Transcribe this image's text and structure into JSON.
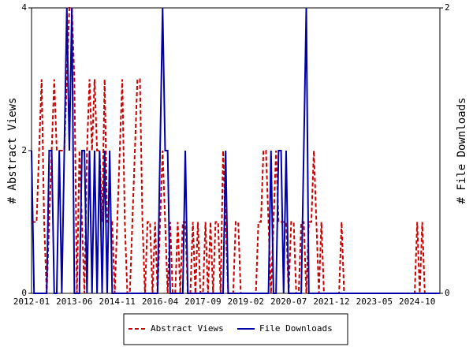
{
  "chart_data": {
    "type": "line",
    "y_label": "# Abstract Views",
    "y2_label": "# File Downloads",
    "categories": [
      "2012-01",
      null,
      null,
      null,
      null,
      null,
      null,
      null,
      null,
      null,
      null,
      null,
      null,
      null,
      null,
      null,
      null,
      "2013-06",
      null,
      null,
      null,
      null,
      null,
      null,
      null,
      null,
      null,
      null,
      null,
      null,
      null,
      null,
      null,
      null,
      "2014-11",
      null,
      null,
      null,
      null,
      null,
      null,
      null,
      null,
      null,
      null,
      null,
      null,
      null,
      null,
      null,
      null,
      "2016-04",
      null,
      null,
      null,
      null,
      null,
      null,
      null,
      null,
      null,
      null,
      null,
      null,
      null,
      null,
      null,
      null,
      "2017-09",
      null,
      null,
      null,
      null,
      null,
      null,
      null,
      null,
      null,
      null,
      null,
      null,
      null,
      null,
      null,
      null,
      "2019-02",
      null,
      null,
      null,
      null,
      null,
      null,
      null,
      null,
      null,
      null,
      null,
      null,
      null,
      null,
      null,
      null,
      "2020-07",
      null,
      null,
      null,
      null,
      null,
      null,
      null,
      null,
      null,
      null,
      null,
      null,
      null,
      null,
      null,
      null,
      "2021-12",
      null,
      null,
      null,
      null,
      null,
      null,
      null,
      null,
      null,
      null,
      null,
      null,
      null,
      null,
      null,
      null,
      "2023-05",
      null,
      null,
      null,
      null,
      null,
      null,
      null,
      null,
      null,
      null,
      null,
      null,
      null,
      null,
      null,
      null,
      "2024-10",
      null,
      null,
      null,
      null,
      null,
      null,
      null,
      null,
      null
    ],
    "series": [
      {
        "name": "Abstract Views",
        "color": "#cc0000",
        "dash": true,
        "values": [
          1,
          1,
          1,
          2,
          3,
          1,
          0,
          1,
          2,
          3,
          2,
          2,
          2,
          2,
          3,
          4,
          4,
          3,
          0,
          2,
          1,
          0,
          2,
          3,
          2,
          3,
          2,
          2,
          1,
          3,
          1,
          1,
          1,
          0,
          1,
          2,
          3,
          1,
          0,
          0,
          1,
          2,
          3,
          3,
          1,
          0,
          1,
          1,
          0,
          1,
          0,
          1,
          2,
          1,
          0,
          1,
          0,
          0,
          1,
          0,
          1,
          1,
          0,
          0,
          1,
          0,
          1,
          0,
          0,
          1,
          0,
          1,
          0,
          1,
          1,
          0,
          2,
          1,
          0,
          0,
          0,
          1,
          1,
          0,
          0,
          0,
          0,
          0,
          0,
          0,
          1,
          1,
          2,
          2,
          1,
          0,
          1,
          2,
          1,
          1,
          1,
          1,
          0,
          1,
          1,
          0,
          0,
          1,
          1,
          0,
          1,
          1,
          2,
          1,
          0,
          1,
          0,
          0,
          0,
          0,
          0,
          0,
          0,
          1,
          0,
          0,
          0,
          0,
          0,
          0,
          0,
          0,
          0,
          0,
          0,
          0,
          0,
          0,
          0,
          0,
          0,
          0,
          0,
          0,
          0,
          0,
          0,
          0,
          0,
          0,
          0,
          0,
          0,
          1,
          0,
          1,
          0,
          0,
          0,
          0,
          0,
          0,
          0
        ]
      },
      {
        "name": "File Downloads",
        "color": "#0000aa",
        "dash": false,
        "axis": "y2",
        "values": [
          1,
          0,
          0,
          0,
          0,
          0,
          0,
          1,
          1,
          0,
          0,
          1,
          0,
          1,
          2,
          1,
          2,
          0,
          0,
          0,
          1,
          1,
          0,
          1,
          0,
          1,
          0,
          1,
          0,
          1,
          0,
          1,
          0,
          0,
          0,
          0,
          0,
          0,
          0,
          0,
          0,
          0,
          0,
          0,
          0,
          0,
          0,
          0,
          0,
          0,
          0,
          1,
          2,
          1,
          1,
          0,
          0,
          0,
          0,
          0,
          0,
          1,
          0,
          0,
          0,
          0,
          0,
          0,
          0,
          0,
          0,
          0,
          0,
          0,
          0,
          0,
          0,
          1,
          0,
          0,
          0,
          0,
          0,
          0,
          0,
          0,
          0,
          0,
          0,
          0,
          0,
          0,
          0,
          0,
          0,
          1,
          0,
          0,
          1,
          1,
          0,
          1,
          0,
          0,
          0,
          0,
          0,
          0,
          1,
          2,
          0,
          0,
          0,
          0,
          0,
          0,
          0,
          0,
          0,
          0,
          0,
          0,
          0,
          0,
          0,
          0,
          0,
          0,
          0,
          0,
          0,
          0,
          0,
          0,
          0,
          0,
          0,
          0,
          0,
          0,
          0,
          0,
          0,
          0,
          0,
          0,
          0,
          0,
          0,
          0,
          0,
          0,
          0,
          0,
          0,
          0,
          0,
          0,
          0,
          0,
          0,
          0,
          0
        ]
      }
    ],
    "ylim": [
      0,
      4
    ],
    "yticks": [
      0,
      2,
      4
    ],
    "y2lim": [
      0,
      2
    ],
    "y2ticks": [
      0,
      2
    ],
    "legend": "bottom"
  }
}
